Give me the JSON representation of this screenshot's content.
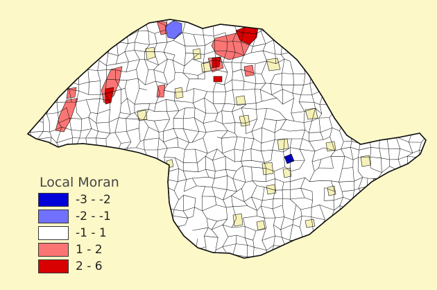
{
  "legend": {
    "title": "Local Moran",
    "items": [
      {
        "label": "-3 - -2",
        "color": "#0000D8"
      },
      {
        "label": "-2 - -1",
        "color": "#7171FF"
      },
      {
        "label": "-1 - 1",
        "color": "#FFFFFF"
      },
      {
        "label": "1 - 2",
        "color": "#FA7574"
      },
      {
        "label": "2 - 6",
        "color": "#D80000"
      }
    ]
  },
  "colors": {
    "background": "#FDF8C8",
    "boundary": "#111111",
    "insignificant_fill": "#F5F1B8"
  }
}
